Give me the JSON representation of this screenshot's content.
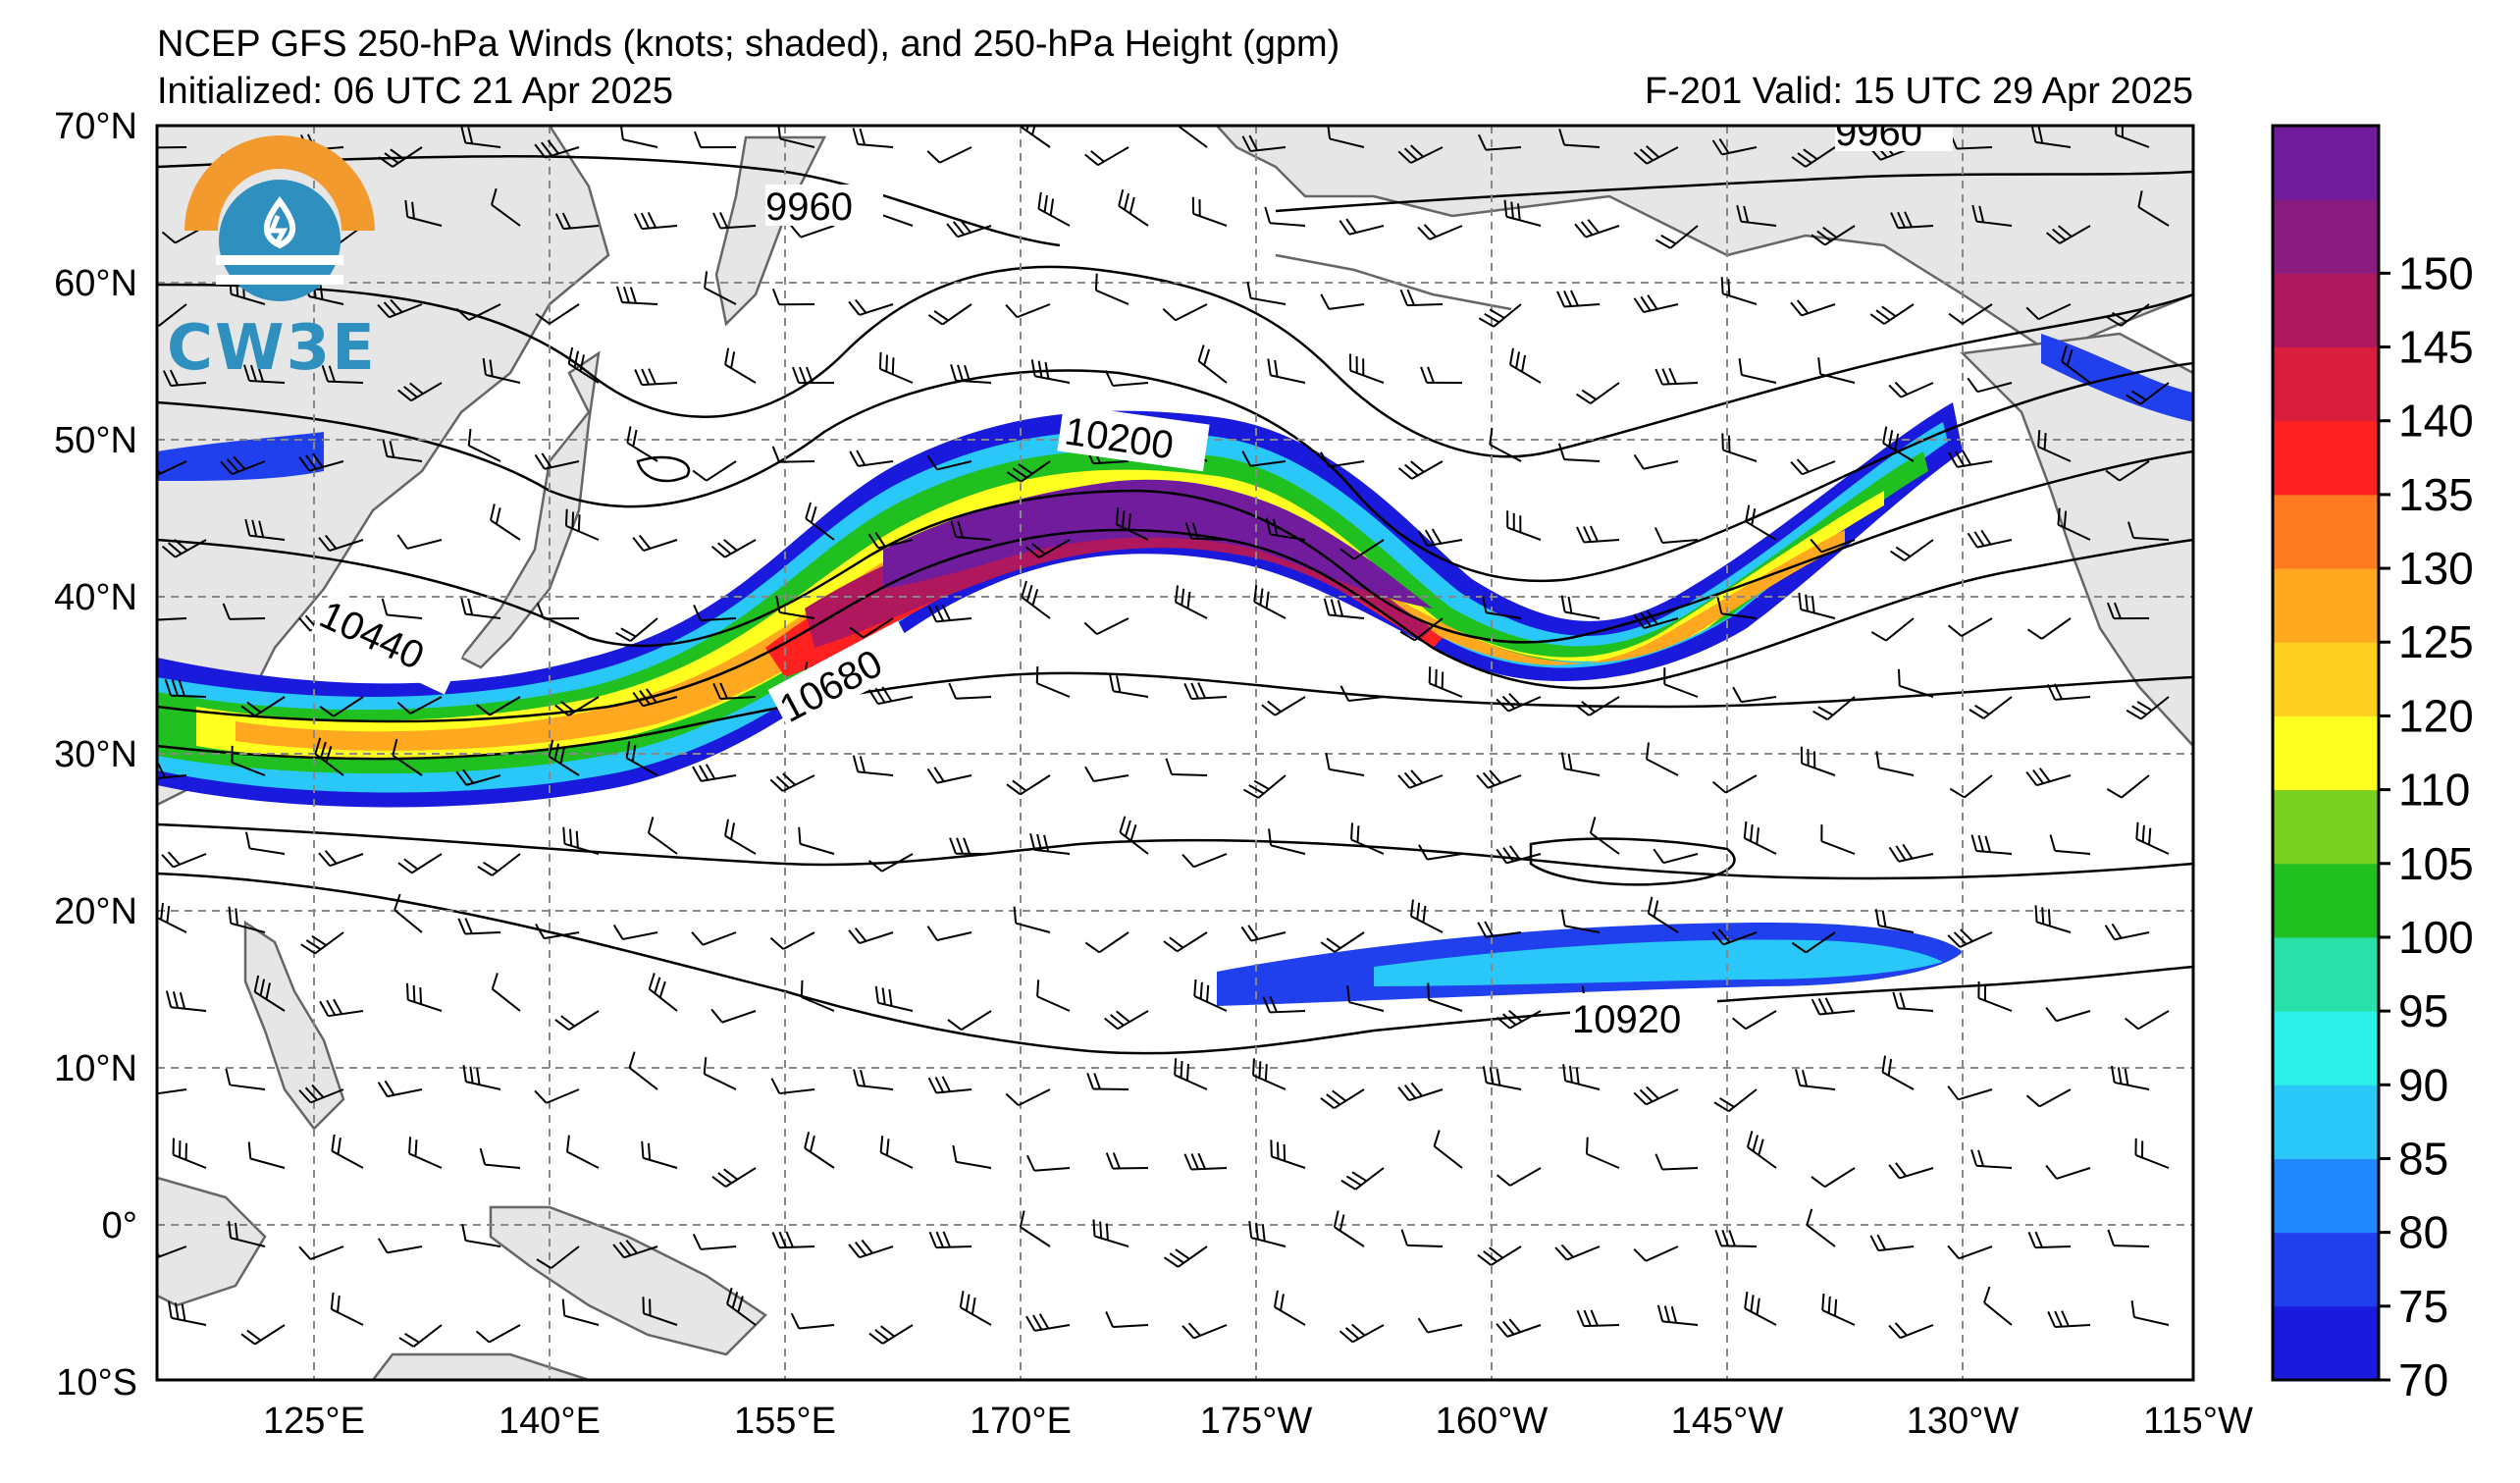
{
  "header": {
    "title": "NCEP GFS 250-hPa Winds (knots; shaded), and 250-hPa Height (gpm)",
    "initialized": "Initialized: 06 UTC 21 Apr 2025",
    "valid": "F-201  Valid: 15 UTC 29 Apr 2025"
  },
  "logo": {
    "text": "CW3E"
  },
  "map": {
    "lat_labels": [
      "70°N",
      "60°N",
      "50°N",
      "40°N",
      "30°N",
      "20°N",
      "10°N",
      "0°",
      "10°S"
    ],
    "lon_labels": [
      "125°E",
      "140°E",
      "155°E",
      "170°E",
      "175°W",
      "160°W",
      "145°W",
      "130°W",
      "115°W"
    ],
    "contour_labels": [
      "9960",
      "9960",
      "10200",
      "10440",
      "10680",
      "10920"
    ],
    "land_color": "#e6e6e6",
    "coast_color": "#666666",
    "grid_color": "#888888"
  },
  "colorbar": {
    "ticks": [
      "70",
      "75",
      "80",
      "85",
      "90",
      "95",
      "100",
      "105",
      "110",
      "120",
      "125",
      "130",
      "135",
      "140",
      "145",
      "150"
    ],
    "colors": [
      "#1a1adc",
      "#2040ee",
      "#2288ff",
      "#2ac8f8",
      "#2af0e8",
      "#28e0a8",
      "#20c020",
      "#78d020",
      "#ffff20",
      "#ffd020",
      "#ffa820",
      "#ff7a20",
      "#ff2020",
      "#d81e3c",
      "#b0185e",
      "#8a1c80",
      "#701c9c"
    ]
  }
}
